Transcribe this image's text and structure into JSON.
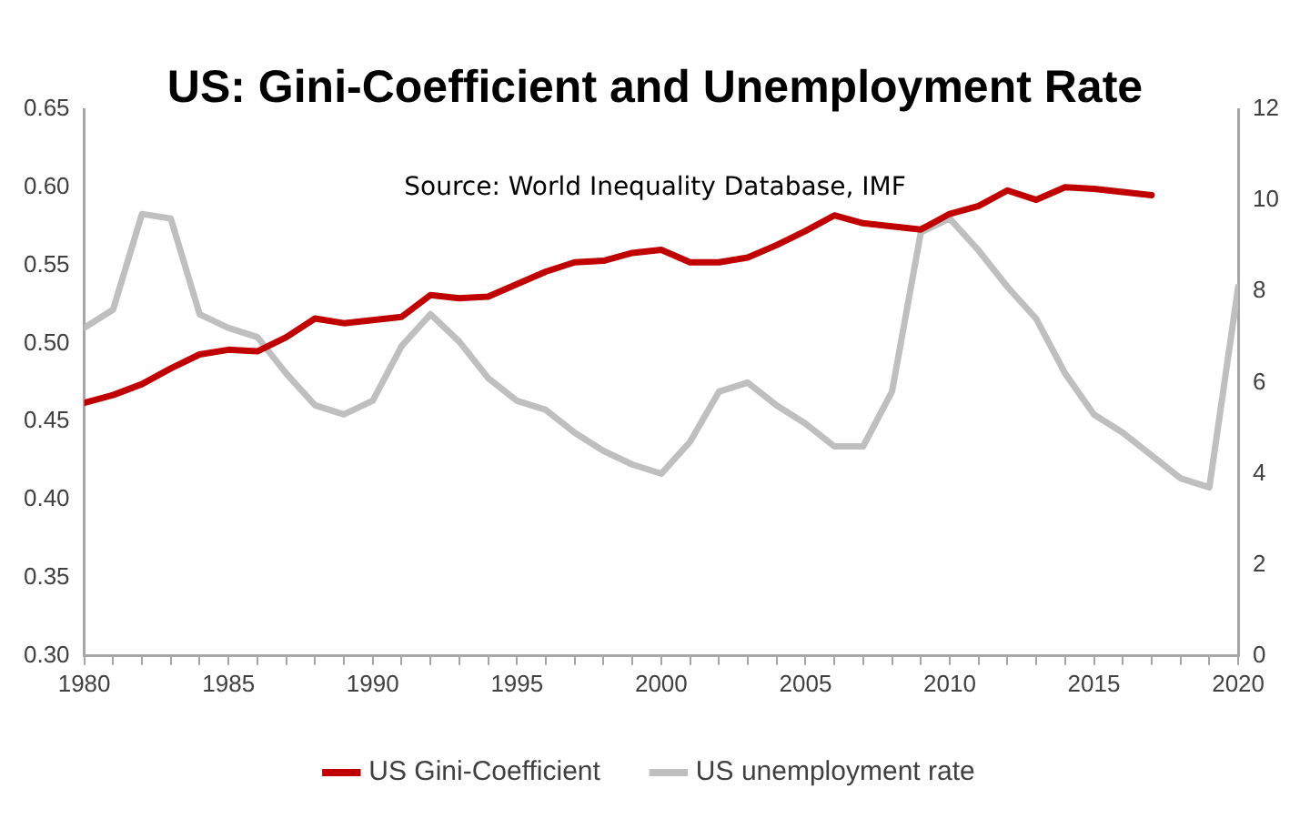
{
  "chart_data": {
    "type": "line",
    "title": "US: Gini-Coefficient and Unemployment Rate",
    "subtitle": "Source: World Inequality Database, IMF",
    "xlim": [
      1980,
      2020
    ],
    "xticks": [
      1980,
      1985,
      1990,
      1995,
      2000,
      2005,
      2010,
      2015,
      2020
    ],
    "ylim": [
      0.3,
      0.65
    ],
    "yticks": [
      {
        "value": 0.3,
        "label": "0.30"
      },
      {
        "value": 0.35,
        "label": "0.35"
      },
      {
        "value": 0.4,
        "label": "0.40"
      },
      {
        "value": 0.45,
        "label": "0.45"
      },
      {
        "value": 0.5,
        "label": "0.50"
      },
      {
        "value": 0.55,
        "label": "0.55"
      },
      {
        "value": 0.6,
        "label": "0.60"
      },
      {
        "value": 0.65,
        "label": "0.65"
      }
    ],
    "y2lim": [
      0,
      12
    ],
    "y2ticks": [
      0,
      2,
      4,
      6,
      8,
      10,
      12
    ],
    "grid": false,
    "legend": "bottom",
    "marker": "none",
    "line_style": "solid",
    "series": [
      {
        "name": "US Gini-Coefficient",
        "color": "#c00000",
        "x": [
          1980,
          1981,
          1982,
          1983,
          1984,
          1985,
          1986,
          1987,
          1988,
          1989,
          1990,
          1991,
          1992,
          1993,
          1994,
          1995,
          1996,
          1997,
          1998,
          1999,
          2000,
          2001,
          2002,
          2003,
          2004,
          2005,
          2006,
          2007,
          2008,
          2009,
          2010,
          2011,
          2012,
          2013,
          2014,
          2015,
          2016,
          2017
        ],
        "values": [
          0.462,
          0.467,
          0.474,
          0.484,
          0.493,
          0.496,
          0.495,
          0.504,
          0.516,
          0.513,
          0.515,
          0.517,
          0.531,
          0.529,
          0.53,
          0.538,
          0.546,
          0.552,
          0.553,
          0.558,
          0.56,
          0.552,
          0.552,
          0.555,
          0.563,
          0.572,
          0.582,
          0.577,
          0.575,
          0.573,
          0.583,
          0.588,
          0.598,
          0.592,
          0.6,
          0.599,
          0.597,
          0.595
        ]
      },
      {
        "name": "US unemployment rate",
        "color": "#bfbfbf",
        "axis": "y2",
        "x": [
          1980,
          1981,
          1982,
          1983,
          1984,
          1985,
          1986,
          1987,
          1988,
          1989,
          1990,
          1991,
          1992,
          1993,
          1994,
          1995,
          1996,
          1997,
          1998,
          1999,
          2000,
          2001,
          2002,
          2003,
          2004,
          2005,
          2006,
          2007,
          2008,
          2009,
          2010,
          2011,
          2012,
          2013,
          2014,
          2015,
          2016,
          2017,
          2018,
          2019,
          2020
        ],
        "values": [
          7.2,
          7.6,
          9.7,
          9.6,
          7.5,
          7.2,
          7.0,
          6.2,
          5.5,
          5.3,
          5.6,
          6.8,
          7.5,
          6.9,
          6.1,
          5.6,
          5.4,
          4.9,
          4.5,
          4.2,
          4.0,
          4.7,
          5.8,
          6.0,
          5.5,
          5.1,
          4.6,
          4.6,
          5.8,
          9.3,
          9.6,
          8.9,
          8.1,
          7.4,
          6.2,
          5.3,
          4.9,
          4.4,
          3.9,
          3.7,
          8.1
        ]
      }
    ]
  }
}
